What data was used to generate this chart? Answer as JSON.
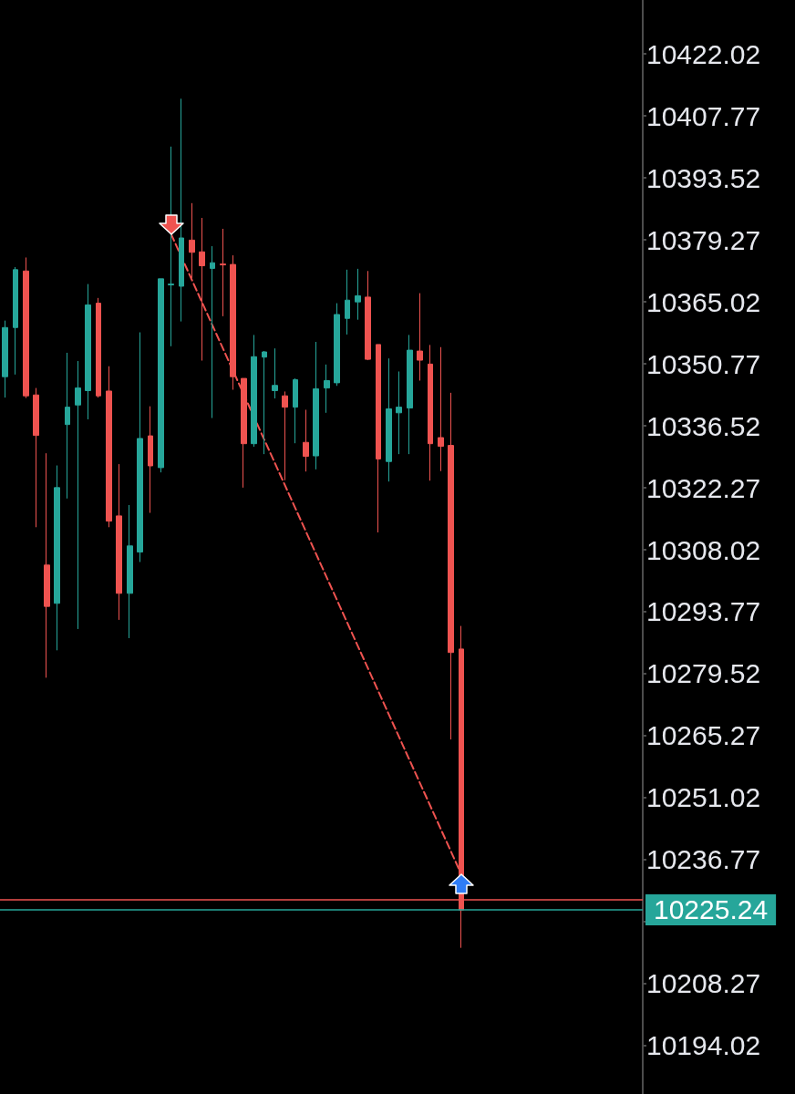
{
  "chart_data": {
    "type": "candlestick",
    "categories": [
      null,
      null,
      null,
      null,
      null,
      null,
      null,
      null,
      null,
      null,
      null,
      null,
      null,
      null,
      null,
      null,
      null,
      null,
      null,
      null,
      null,
      null,
      null,
      null,
      null,
      null,
      null,
      null,
      null,
      null,
      null,
      null,
      null,
      null,
      null,
      null,
      null,
      null,
      null,
      null,
      null,
      null,
      null,
      null,
      null,
      null,
      null,
      null,
      null,
      null,
      null,
      null,
      null,
      null,
      null,
      null,
      null,
      null,
      null,
      null,
      null,
      null
    ],
    "ohlc": [
      [
        10347.8,
        10360.7,
        10343.0,
        10359.1
      ],
      [
        10359.1,
        10373.0,
        10348.3,
        10372.4
      ],
      [
        10372.1,
        10375.2,
        10342.9,
        10343.4
      ],
      [
        10343.6,
        10345.2,
        10313.2,
        10334.3
      ],
      [
        10304.5,
        10330.2,
        10278.6,
        10295.0
      ],
      [
        10295.7,
        10327.4,
        10284.9,
        10322.3
      ],
      [
        10336.8,
        10353.3,
        10319.8,
        10340.8
      ],
      [
        10341.3,
        10351.4,
        10289.8,
        10345.2
      ],
      [
        10344.6,
        10369.1,
        10338.0,
        10364.3
      ],
      [
        10364.7,
        10365.9,
        10343.0,
        10343.4
      ],
      [
        10344.5,
        10350.2,
        10313.2,
        10314.6
      ],
      [
        10315.8,
        10327.7,
        10291.9,
        10298.0
      ],
      [
        10298.0,
        10318.3,
        10287.7,
        10308.9
      ],
      [
        10307.5,
        10358.0,
        10305.2,
        10333.6
      ],
      [
        10334.2,
        10341.0,
        10316.5,
        10327.3
      ],
      [
        10326.9,
        10370.3,
        10325.8,
        10370.3
      ],
      [
        10368.9,
        10400.7,
        10354.8,
        10369.1
      ],
      [
        10368.6,
        10411.7,
        10360.5,
        10379.7
      ],
      [
        10379.2,
        10387.7,
        10370.5,
        10376.4
      ],
      [
        10376.5,
        10384.3,
        10351.5,
        10373.3
      ],
      [
        10372.7,
        10377.8,
        10338.3,
        10374.0
      ],
      [
        10373.7,
        10381.8,
        10361.7,
        10373.5
      ],
      [
        10373.6,
        10375.7,
        10344.8,
        10347.8
      ],
      [
        10347.4,
        10347.4,
        10322.3,
        10332.4
      ],
      [
        10332.4,
        10357.4,
        10331.7,
        10352.4
      ],
      [
        10352.3,
        10353.7,
        10330.0,
        10353.5
      ],
      [
        10344.6,
        10354.3,
        10342.8,
        10345.8
      ],
      [
        10343.4,
        10344.4,
        10324.0,
        10340.8
      ],
      [
        10340.8,
        10347.4,
        10332.5,
        10347.1
      ],
      [
        10332.7,
        10340.2,
        10326.0,
        10329.5
      ],
      [
        10329.6,
        10355.8,
        10326.5,
        10345.0
      ],
      [
        10345.2,
        10350.6,
        10339.5,
        10346.9
      ],
      [
        10346.4,
        10364.7,
        10345.7,
        10362.1
      ],
      [
        10361.2,
        10372.4,
        10357.5,
        10365.4
      ],
      [
        10365.0,
        10372.6,
        10360.9,
        10366.4
      ],
      [
        10366.1,
        10372.1,
        10351.6,
        10351.8
      ],
      [
        10355.2,
        10355.2,
        10312.0,
        10328.9
      ],
      [
        10328.3,
        10352.0,
        10323.7,
        10340.4
      ],
      [
        10339.5,
        10349.0,
        10330.0,
        10340.8
      ],
      [
        10340.6,
        10357.4,
        10330.0,
        10353.9
      ],
      [
        10353.7,
        10367.0,
        10346.9,
        10351.6
      ],
      [
        10350.7,
        10355.1,
        10323.9,
        10332.4
      ],
      [
        10333.8,
        10354.6,
        10326.1,
        10331.8
      ],
      [
        10332.0,
        10344.1,
        10264.4,
        10284.4
      ],
      [
        10285.2,
        10290.5,
        10216.5,
        10225.2
      ],
      null,
      null,
      null,
      null,
      null,
      null,
      null,
      null,
      null,
      null,
      null,
      null,
      null,
      null,
      null,
      null,
      null
    ],
    "colors": [
      "#26a69a",
      "#26a69a",
      "#ef5350",
      "#ef5350",
      "#ef5350",
      "#26a69a",
      "#26a69a",
      "#26a69a",
      "#26a69a",
      "#ef5350",
      "#ef5350",
      "#ef5350",
      "#26a69a",
      "#26a69a",
      "#ef5350",
      "#26a69a",
      "#26a69a",
      "#26a69a",
      "#ef5350",
      "#ef5350",
      "#26a69a",
      "#ef5350",
      "#ef5350",
      "#ef5350",
      "#26a69a",
      "#26a69a",
      "#26a69a",
      "#ef5350",
      "#26a69a",
      "#ef5350",
      "#26a69a",
      "#26a69a",
      "#26a69a",
      "#26a69a",
      "#26a69a",
      "#ef5350",
      "#ef5350",
      "#26a69a",
      "#26a69a",
      "#26a69a",
      "#ef5350",
      "#ef5350",
      "#ef5350",
      "#ef5350",
      "#ef5350",
      null,
      null,
      null,
      null,
      null,
      null,
      null,
      null,
      null,
      null,
      null,
      null,
      null,
      null,
      null,
      null,
      null
    ],
    "series": [
      {
        "type": "line",
        "color": "#ef5350",
        "line_style": "dashed",
        "values": [
          null,
          null,
          null,
          null,
          null,
          null,
          null,
          null,
          null,
          null,
          null,
          null,
          null,
          null,
          null,
          null,
          10380.6,
          null,
          null,
          null,
          null,
          null,
          null,
          null,
          null,
          null,
          null,
          null,
          null,
          null,
          null,
          null,
          null,
          null,
          null,
          null,
          null,
          null,
          null,
          null,
          null,
          null,
          null,
          null,
          10233.4,
          null,
          null,
          null,
          null,
          null,
          null,
          null,
          null,
          null,
          null,
          null,
          null,
          null,
          null,
          null,
          null,
          null
        ]
      }
    ],
    "ylim": [
      10182.9,
      10434.4
    ],
    "yticks": [
      10194.02,
      10208.27,
      {
        "value": 10222.52,
        "label": null
      },
      10236.77,
      10251.02,
      10265.27,
      10279.52,
      10293.77,
      10308.02,
      10322.27,
      10336.52,
      10350.77,
      10365.02,
      10379.27,
      10393.52,
      10407.77,
      10422.02
    ],
    "ref_lines": [
      {
        "axis": "y",
        "value": 10227.66,
        "color": "#ef5350"
      },
      {
        "axis": "y",
        "value": 10225.24,
        "label": "10225.24",
        "color": "#26a69a"
      }
    ],
    "tick_labels": "y"
  }
}
